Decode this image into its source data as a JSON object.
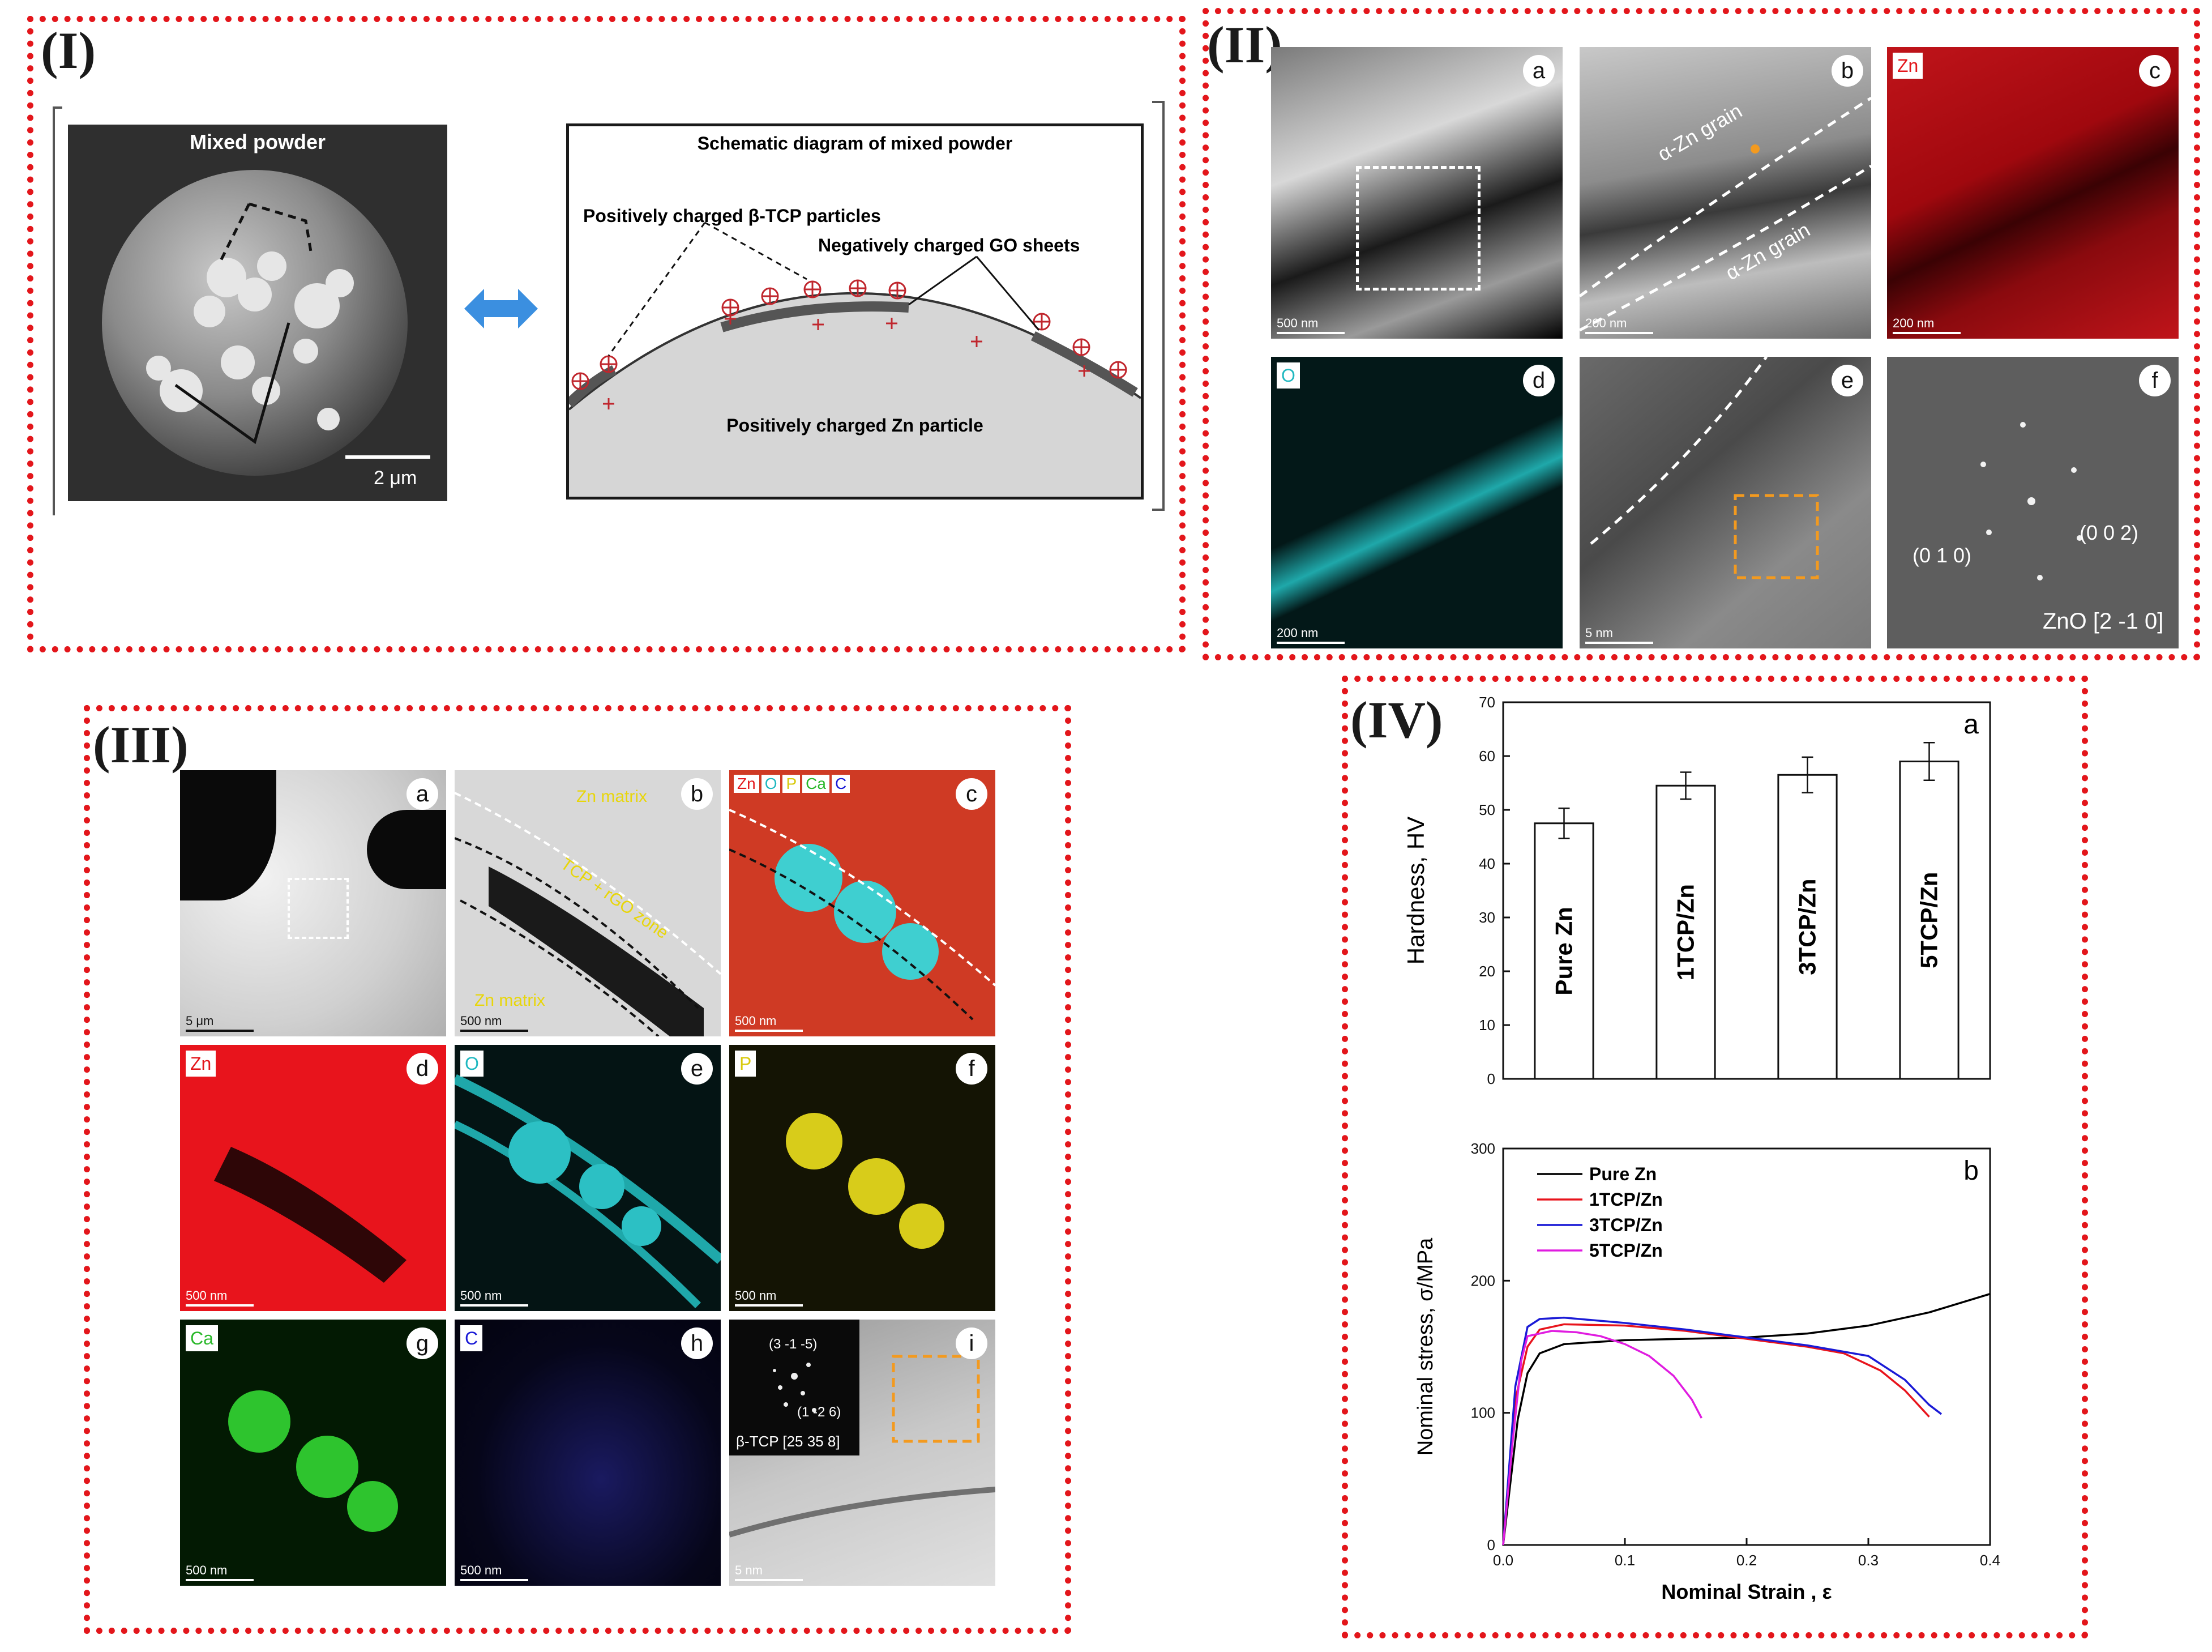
{
  "panel_I": {
    "label": "(I)",
    "sem_title": "Mixed powder",
    "scale": "2 μm",
    "schematic_title": "Schematic diagram of mixed powder",
    "label_tcp": "Positively charged β-TCP particles",
    "label_go": "Negatively charged GO sheets",
    "label_zn": "Positively charged Zn particle",
    "colors": {
      "arrow": "#3b8fe0",
      "plus": "#c0262d"
    }
  },
  "panel_II": {
    "label": "(II)",
    "tiles": [
      {
        "letter": "a",
        "tag": "",
        "scale": "500 nm"
      },
      {
        "letter": "b",
        "tag": "",
        "scale": "200 nm",
        "grain_top": "α-Zn grain",
        "grain_bottom": "α-Zn grain"
      },
      {
        "letter": "c",
        "tag": "Zn",
        "scale": "200 nm"
      },
      {
        "letter": "d",
        "tag": "O",
        "scale": "200 nm"
      },
      {
        "letter": "e",
        "tag": "",
        "scale": "5 nm"
      },
      {
        "letter": "f",
        "tag": "",
        "scale": "",
        "spot1": "(0 1 0)",
        "spot2": "(0 0 2)",
        "zone": "ZnO [2 -1 0]"
      }
    ]
  },
  "panel_III": {
    "label": "(III)",
    "tiles": [
      {
        "letter": "a",
        "tag": "",
        "scale": "5 μm"
      },
      {
        "letter": "b",
        "tag": "",
        "scale": "500 nm",
        "zn_top": "Zn matrix",
        "zone": "TCP + rGO zone",
        "zn_bottom": "Zn matrix"
      },
      {
        "letter": "c",
        "tag": "",
        "scale": "500 nm",
        "tags": [
          "Zn",
          "O",
          "P",
          "Ca",
          "C"
        ]
      },
      {
        "letter": "d",
        "tag": "Zn",
        "scale": "500 nm"
      },
      {
        "letter": "e",
        "tag": "O",
        "scale": "500 nm"
      },
      {
        "letter": "f",
        "tag": "P",
        "scale": "500 nm"
      },
      {
        "letter": "g",
        "tag": "Ca",
        "scale": "500 nm"
      },
      {
        "letter": "h",
        "tag": "C",
        "scale": "500 nm"
      },
      {
        "letter": "i",
        "tag": "",
        "scale": "5 nm",
        "spot1": "(3 -1 -5)",
        "spot2": "(1 -2 6)",
        "zone": "β-TCP [25 35 8]"
      }
    ]
  },
  "panel_IV": {
    "label": "(IV)"
  },
  "chart_data": [
    {
      "type": "bar",
      "panel_letter": "a",
      "categories": [
        "Pure Zn",
        "1TCP/Zn",
        "3TCP/Zn",
        "5TCP/Zn"
      ],
      "values": [
        47.5,
        54.5,
        56.5,
        59
      ],
      "errors": [
        2.8,
        2.5,
        3.3,
        3.5
      ],
      "ylabel": "Hardness, HV",
      "xlabel": "",
      "ylim": [
        0,
        70
      ],
      "yticks": [
        0,
        10,
        20,
        30,
        40,
        50,
        60,
        70
      ]
    },
    {
      "type": "line",
      "panel_letter": "b",
      "xlabel": "Nominal Strain , ε",
      "ylabel": "Nominal stress, σ/MPa",
      "xlim": [
        0,
        0.4
      ],
      "ylim": [
        0,
        300
      ],
      "xticks": [
        0.0,
        0.1,
        0.2,
        0.3,
        0.4
      ],
      "yticks": [
        0,
        100,
        200,
        300
      ],
      "legend_position": "top-left",
      "series": [
        {
          "name": "Pure Zn",
          "color": "#000000",
          "x": [
            0,
            0.012,
            0.02,
            0.03,
            0.05,
            0.1,
            0.15,
            0.2,
            0.25,
            0.3,
            0.35,
            0.4
          ],
          "y": [
            0,
            95,
            130,
            145,
            152,
            155,
            156,
            157,
            160,
            166,
            176,
            190
          ]
        },
        {
          "name": "1TCP/Zn",
          "color": "#e8141c",
          "x": [
            0,
            0.01,
            0.02,
            0.03,
            0.05,
            0.1,
            0.15,
            0.2,
            0.25,
            0.28,
            0.31,
            0.33,
            0.35
          ],
          "y": [
            0,
            110,
            150,
            163,
            167,
            166,
            162,
            156,
            150,
            145,
            132,
            117,
            97
          ]
        },
        {
          "name": "3TCP/Zn",
          "color": "#1a1ad6",
          "x": [
            0,
            0.01,
            0.02,
            0.03,
            0.05,
            0.1,
            0.15,
            0.2,
            0.25,
            0.3,
            0.33,
            0.35,
            0.36
          ],
          "y": [
            0,
            120,
            165,
            171,
            172,
            168,
            163,
            157,
            151,
            143,
            125,
            106,
            99
          ]
        },
        {
          "name": "5TCP/Zn",
          "color": "#e01ce0",
          "x": [
            0,
            0.008,
            0.015,
            0.02,
            0.04,
            0.06,
            0.08,
            0.1,
            0.12,
            0.14,
            0.155,
            0.163
          ],
          "y": [
            0,
            80,
            140,
            158,
            162,
            161,
            158,
            152,
            143,
            128,
            110,
            96
          ]
        }
      ]
    }
  ]
}
